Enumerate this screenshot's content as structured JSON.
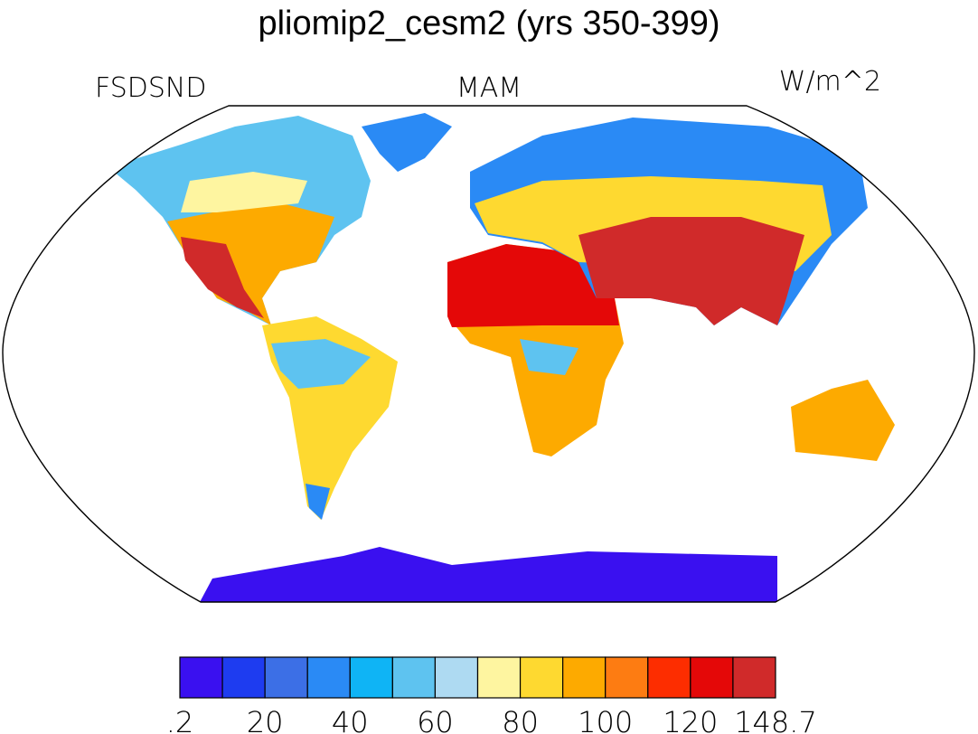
{
  "header": {
    "title": "pliomip2_cesm2 (yrs 350-399)",
    "left": "FSDSND",
    "center": "MAM",
    "right": "W/m^2"
  },
  "colorbar": {
    "colors": [
      "#3a10f0",
      "#1e3cf0",
      "#3c6fe6",
      "#2a8af5",
      "#0fb4f5",
      "#5ec3f0",
      "#aedaf2",
      "#fef5a0",
      "#fed930",
      "#fdaa00",
      "#fd7c12",
      "#fd2d00",
      "#e40808",
      "#d02a2a"
    ],
    "labels": [
      ".2",
      "20",
      "40",
      "60",
      "80",
      "100",
      "120",
      "148.7"
    ]
  }
}
